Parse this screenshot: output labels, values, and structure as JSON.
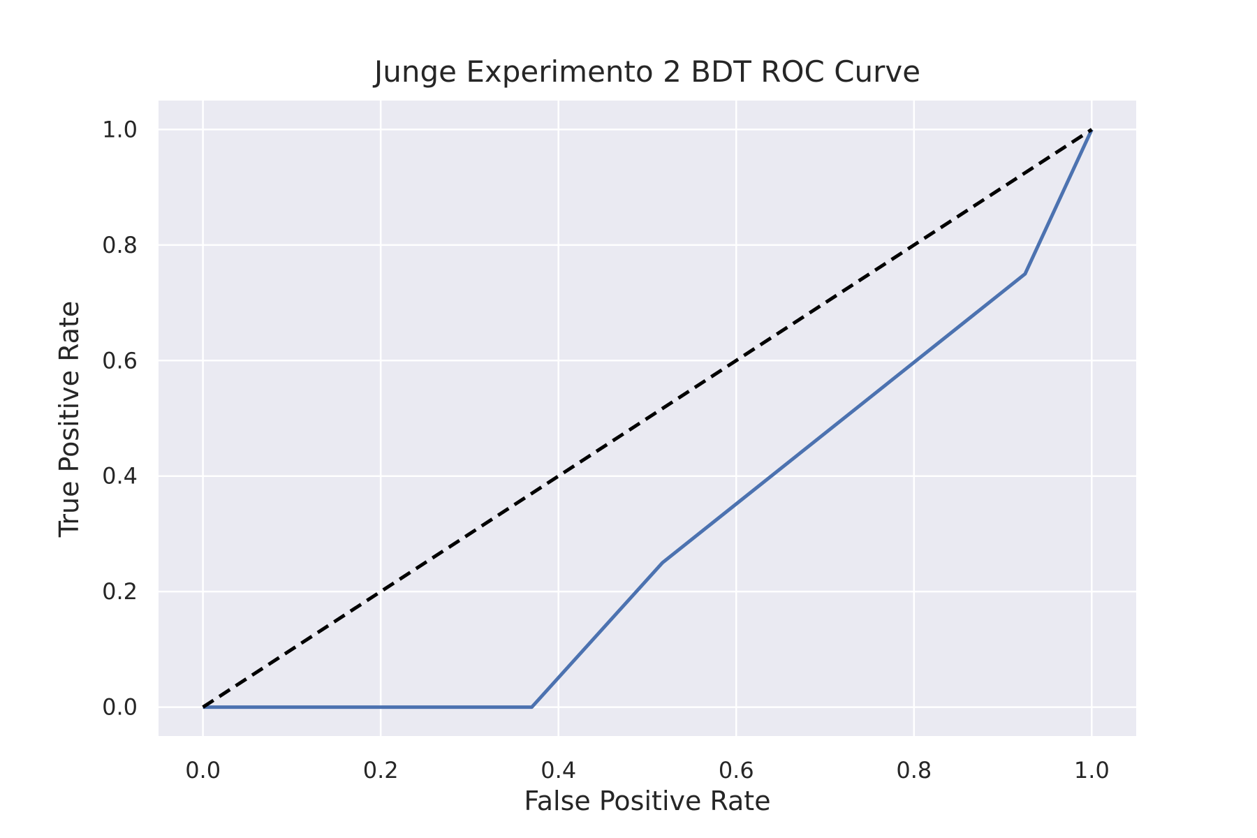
{
  "chart_data": {
    "type": "line",
    "title": "Junge Experimento 2 BDT ROC Curve",
    "xlabel": "False Positive Rate",
    "ylabel": "True Positive Rate",
    "xlim": [
      -0.05,
      1.05
    ],
    "ylim": [
      -0.05,
      1.05
    ],
    "xticks": [
      0.0,
      0.2,
      0.4,
      0.6,
      0.8,
      1.0
    ],
    "yticks": [
      0.0,
      0.2,
      0.4,
      0.6,
      0.8,
      1.0
    ],
    "xtick_labels": [
      "0.0",
      "0.2",
      "0.4",
      "0.6",
      "0.8",
      "1.0"
    ],
    "ytick_labels": [
      "0.0",
      "0.2",
      "0.4",
      "0.6",
      "0.8",
      "1.0"
    ],
    "grid": true,
    "legend": "none",
    "series": [
      {
        "x": [
          0.0,
          0.37,
          0.517,
          0.925,
          1.0
        ],
        "y": [
          0.0,
          0.0,
          0.25,
          0.75,
          1.0
        ],
        "color": "#4c72b0",
        "style": "solid"
      },
      {
        "x": [
          0.0,
          1.0
        ],
        "y": [
          0.0,
          1.0
        ],
        "color": "#000000",
        "style": "dashed"
      }
    ],
    "colors": {
      "plot_background": "#eaeaf2",
      "grid": "#ffffff",
      "text": "#262626"
    }
  }
}
